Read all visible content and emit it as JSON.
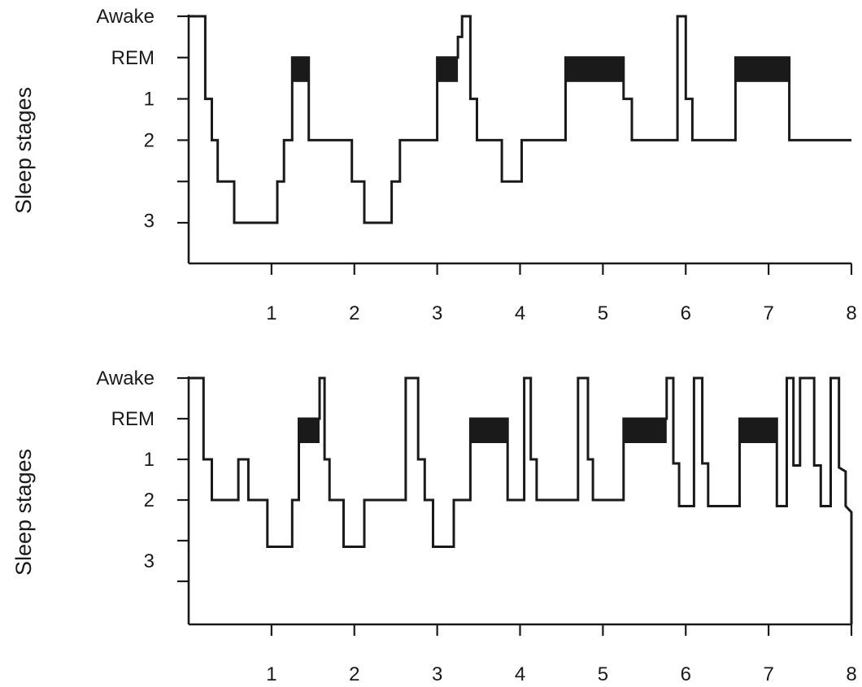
{
  "chart_data": [
    {
      "type": "line",
      "ylabel": "Sleep stages",
      "ytick_labels": [
        {
          "label": "Awake",
          "level": 0
        },
        {
          "label": "REM",
          "level": 1
        },
        {
          "label": "1",
          "level": 2
        },
        {
          "label": "2",
          "level": 3
        },
        {
          "label": "3",
          "level": 4.95
        }
      ],
      "ytick_levels": [
        0,
        1,
        2,
        3,
        4,
        5
      ],
      "xtick_labels": [
        "1",
        "2",
        "3",
        "4",
        "5",
        "6",
        "7",
        "8"
      ],
      "xlim": [
        0,
        8
      ],
      "ylim_levels": [
        0,
        6
      ],
      "hypnogram": [
        [
          0,
          0
        ],
        [
          0.2,
          0
        ],
        [
          0.2,
          2
        ],
        [
          0.28,
          2
        ],
        [
          0.28,
          3
        ],
        [
          0.35,
          3
        ],
        [
          0.35,
          4
        ],
        [
          0.55,
          4
        ],
        [
          0.55,
          5
        ],
        [
          1.07,
          5
        ],
        [
          1.07,
          4
        ],
        [
          1.15,
          4
        ],
        [
          1.15,
          3
        ],
        [
          1.25,
          3
        ],
        [
          1.25,
          1
        ],
        [
          1.45,
          1
        ],
        [
          1.45,
          3
        ],
        [
          1.97,
          3
        ],
        [
          1.97,
          4
        ],
        [
          2.12,
          4
        ],
        [
          2.12,
          5
        ],
        [
          2.45,
          5
        ],
        [
          2.45,
          4
        ],
        [
          2.55,
          4
        ],
        [
          2.55,
          3
        ],
        [
          3.0,
          3
        ],
        [
          3.0,
          1
        ],
        [
          3.25,
          1
        ],
        [
          3.25,
          0.5
        ],
        [
          3.3,
          0.5
        ],
        [
          3.3,
          0
        ],
        [
          3.4,
          0
        ],
        [
          3.4,
          2
        ],
        [
          3.48,
          2
        ],
        [
          3.48,
          3
        ],
        [
          3.78,
          3
        ],
        [
          3.78,
          4
        ],
        [
          4.02,
          4
        ],
        [
          4.02,
          3
        ],
        [
          4.55,
          3
        ],
        [
          4.55,
          1
        ],
        [
          5.25,
          1
        ],
        [
          5.25,
          2
        ],
        [
          5.35,
          2
        ],
        [
          5.35,
          3
        ],
        [
          5.9,
          3
        ],
        [
          5.9,
          0
        ],
        [
          6.0,
          0
        ],
        [
          6.0,
          2
        ],
        [
          6.08,
          2
        ],
        [
          6.08,
          3
        ],
        [
          6.6,
          3
        ],
        [
          6.6,
          1
        ],
        [
          7.25,
          1
        ],
        [
          7.25,
          3
        ],
        [
          8.0,
          3
        ]
      ],
      "rem_periods": [
        [
          1.25,
          1.45
        ],
        [
          3.0,
          3.25
        ],
        [
          4.55,
          5.25
        ],
        [
          6.6,
          7.25
        ]
      ]
    },
    {
      "type": "line",
      "ylabel": "Sleep stages",
      "ytick_labels": [
        {
          "label": "Awake",
          "level": 0
        },
        {
          "label": "REM",
          "level": 1
        },
        {
          "label": "1",
          "level": 2
        },
        {
          "label": "2",
          "level": 3
        },
        {
          "label": "3",
          "level": 4.5
        }
      ],
      "ytick_levels": [
        0,
        1,
        2,
        3,
        4,
        5
      ],
      "xtick_labels": [
        "1",
        "2",
        "3",
        "4",
        "5",
        "6",
        "7",
        "8"
      ],
      "xlim": [
        0,
        8
      ],
      "ylim_levels": [
        0,
        6
      ],
      "hypnogram": [
        [
          0,
          0
        ],
        [
          0.18,
          0
        ],
        [
          0.18,
          2
        ],
        [
          0.28,
          2
        ],
        [
          0.28,
          3
        ],
        [
          0.6,
          3
        ],
        [
          0.6,
          2
        ],
        [
          0.72,
          2
        ],
        [
          0.72,
          3
        ],
        [
          0.95,
          3
        ],
        [
          0.95,
          4.15
        ],
        [
          1.25,
          4.15
        ],
        [
          1.25,
          3
        ],
        [
          1.33,
          3
        ],
        [
          1.33,
          1
        ],
        [
          1.58,
          1
        ],
        [
          1.58,
          0
        ],
        [
          1.64,
          0
        ],
        [
          1.64,
          2
        ],
        [
          1.7,
          2
        ],
        [
          1.7,
          3
        ],
        [
          1.87,
          3
        ],
        [
          1.87,
          4.15
        ],
        [
          2.12,
          4.15
        ],
        [
          2.12,
          3
        ],
        [
          2.62,
          3
        ],
        [
          2.62,
          0
        ],
        [
          2.77,
          0
        ],
        [
          2.77,
          2
        ],
        [
          2.85,
          2
        ],
        [
          2.85,
          3
        ],
        [
          2.95,
          3
        ],
        [
          2.95,
          4.15
        ],
        [
          3.2,
          4.15
        ],
        [
          3.2,
          3
        ],
        [
          3.4,
          3
        ],
        [
          3.4,
          1
        ],
        [
          3.85,
          1
        ],
        [
          3.85,
          3
        ],
        [
          4.05,
          3
        ],
        [
          4.05,
          0
        ],
        [
          4.13,
          0
        ],
        [
          4.13,
          2
        ],
        [
          4.2,
          2
        ],
        [
          4.2,
          3
        ],
        [
          4.7,
          3
        ],
        [
          4.7,
          0
        ],
        [
          4.82,
          0
        ],
        [
          4.82,
          2
        ],
        [
          4.88,
          2
        ],
        [
          4.88,
          3
        ],
        [
          5.25,
          3
        ],
        [
          5.25,
          1
        ],
        [
          5.77,
          1
        ],
        [
          5.77,
          0
        ],
        [
          5.85,
          0
        ],
        [
          5.85,
          2.1
        ],
        [
          5.92,
          2.1
        ],
        [
          5.92,
          3.15
        ],
        [
          6.1,
          3.15
        ],
        [
          6.1,
          0
        ],
        [
          6.2,
          0
        ],
        [
          6.2,
          2.1
        ],
        [
          6.27,
          2.1
        ],
        [
          6.27,
          3.15
        ],
        [
          6.65,
          3.15
        ],
        [
          6.65,
          1
        ],
        [
          7.1,
          1
        ],
        [
          7.1,
          3.15
        ],
        [
          7.22,
          3.15
        ],
        [
          7.22,
          0
        ],
        [
          7.3,
          0
        ],
        [
          7.3,
          2.15
        ],
        [
          7.38,
          2.15
        ],
        [
          7.38,
          0
        ],
        [
          7.55,
          0
        ],
        [
          7.55,
          2.15
        ],
        [
          7.63,
          2.15
        ],
        [
          7.63,
          3.15
        ],
        [
          7.75,
          3.15
        ],
        [
          7.75,
          0
        ],
        [
          7.85,
          0
        ],
        [
          7.85,
          2.2
        ],
        [
          7.93,
          2.3
        ],
        [
          7.93,
          3.15
        ],
        [
          8.0,
          3.3
        ],
        [
          8.0,
          6
        ]
      ],
      "rem_periods": [
        [
          1.33,
          1.58
        ],
        [
          3.4,
          3.85
        ],
        [
          5.25,
          5.77
        ],
        [
          6.65,
          7.1
        ]
      ]
    }
  ]
}
